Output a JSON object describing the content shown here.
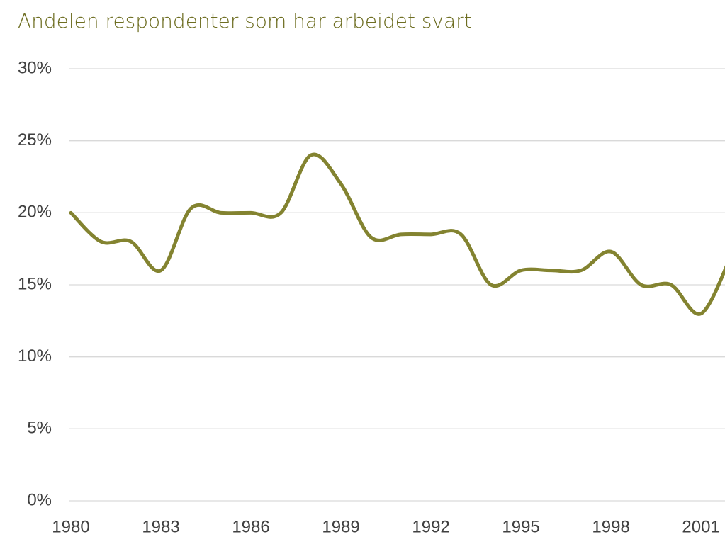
{
  "chart_data": {
    "type": "line",
    "title": "Andelen respondenter som har arbeidet svart",
    "x": [
      1980,
      1981,
      1982,
      1983,
      1984,
      1985,
      1986,
      1987,
      1988,
      1989,
      1990,
      1991,
      1992,
      1993,
      1994,
      1995,
      1996,
      1997,
      1998,
      1999,
      2000,
      2001,
      2002
    ],
    "values": [
      20,
      18,
      18,
      16,
      20.3,
      20,
      20,
      20,
      24,
      22,
      18.3,
      18.5,
      18.5,
      18.5,
      15,
      16,
      16,
      16,
      17.3,
      15,
      15,
      13,
      17
    ],
    "color": "#838330",
    "smooth": true,
    "xlim": [
      1980,
      2001.8
    ],
    "xticks": [
      1980,
      1983,
      1986,
      1989,
      1992,
      1995,
      1998,
      2001
    ],
    "ylim": [
      0,
      30
    ],
    "yticks": [
      {
        "value": 0,
        "label": "0%"
      },
      {
        "value": 5,
        "label": "5%"
      },
      {
        "value": 10,
        "label": "10%"
      },
      {
        "value": 15,
        "label": "15%"
      },
      {
        "value": 20,
        "label": "20%"
      },
      {
        "value": 25,
        "label": "25%"
      },
      {
        "value": 30,
        "label": "30%"
      }
    ],
    "grid": true
  }
}
